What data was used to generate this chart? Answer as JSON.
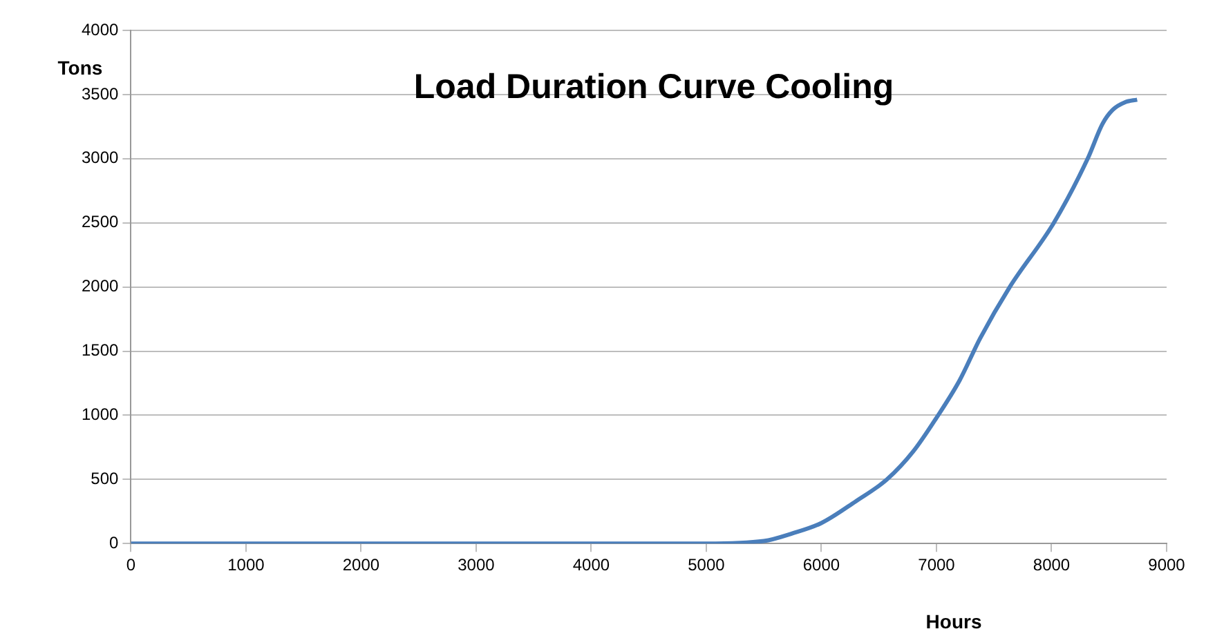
{
  "chart_data": {
    "type": "line",
    "title": "Load Duration Curve Cooling",
    "xlabel": "Hours",
    "ylabel": "Tons",
    "series": [
      {
        "color": "#4a7ebb",
        "x": [
          0,
          1000,
          2000,
          3000,
          4000,
          4500,
          5000,
          5500,
          5750,
          6000,
          6300,
          6570,
          6800,
          7000,
          7200,
          7380,
          7637,
          8020,
          8314,
          8442,
          8531,
          8640,
          8744
        ],
        "values": [
          0,
          0,
          0,
          0,
          0,
          0,
          0,
          20,
          80,
          160,
          330,
          500,
          720,
          980,
          1270,
          1600,
          2000,
          2500,
          3000,
          3270,
          3380,
          3440,
          3460
        ]
      }
    ],
    "xlim": [
      0,
      9000
    ],
    "xticks": [
      0,
      1000,
      2000,
      3000,
      4000,
      5000,
      6000,
      7000,
      8000,
      9000
    ],
    "ylim": [
      0,
      4000
    ],
    "yticks": [
      0,
      500,
      1000,
      1500,
      2000,
      2500,
      3000,
      3500,
      4000
    ],
    "grid": "y",
    "legend": false,
    "marker": "none",
    "line_style": "solid"
  }
}
